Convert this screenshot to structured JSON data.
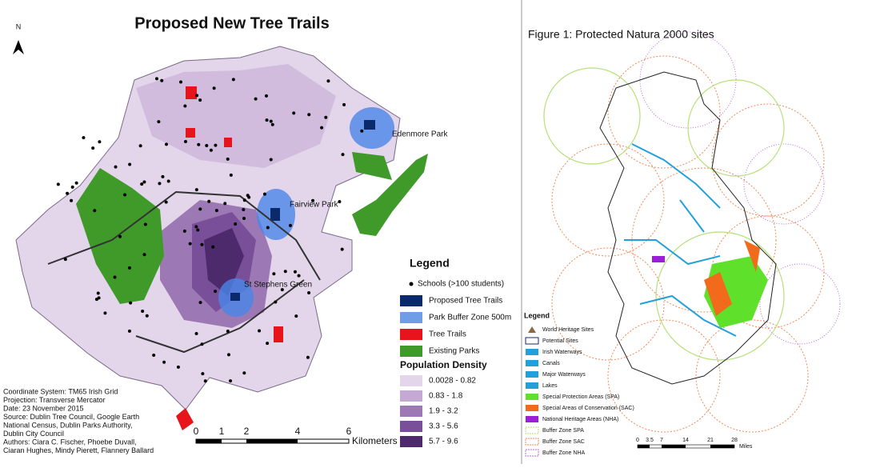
{
  "left_map": {
    "north": "N",
    "title": "Proposed New Tree Trails",
    "places": [
      "Edenmore Park",
      "Fairview Park",
      "St Stephens Green"
    ],
    "legend_title": "Legend",
    "legend": [
      {
        "label": "Schools (>100 students)",
        "color": "#000000"
      },
      {
        "label": "Proposed Tree Trails",
        "color": "#0b2a6b"
      },
      {
        "label": "Park Buffer Zone 500m",
        "color": "#6f9ee6"
      },
      {
        "label": "Tree Trails",
        "color": "#e8141b"
      },
      {
        "label": "Existing Parks",
        "color": "#3f9a2a"
      }
    ],
    "density_title": "Population Density",
    "density": [
      {
        "label": "0.0028 - 0.82",
        "color": "#e3d5ea"
      },
      {
        "label": "0.83 - 1.8",
        "color": "#c4a9d3"
      },
      {
        "label": "1.9 - 3.2",
        "color": "#9c79b4"
      },
      {
        "label": "3.3 - 5.6",
        "color": "#7a4f99"
      },
      {
        "label": "5.7 - 9.6",
        "color": "#4d2a6b"
      }
    ],
    "credits": [
      "Coordinate System: TM65 Irish Grid",
      "Projection: Transverse Mercator",
      "Date: 23 November 2015",
      "Source: Dublin Tree Council, Google Earth",
      "National Census, Dublin Parks Authority,",
      "Dublin City Council",
      "Authors: Ciara C. Fischer, Phoebe Duvall,",
      "Ciaran Hughes, Mindy Pierett, Flannery Ballard"
    ],
    "scale": [
      "0",
      "1",
      "2",
      "4",
      "6"
    ],
    "scale_unit": "Kilometers"
  },
  "right_map": {
    "title": "Figure 1: Protected Natura 2000 sites",
    "legend_title": "Legend",
    "legend": [
      {
        "label": "World Heritage Sites",
        "color": "#8b6a4a"
      },
      {
        "label": "Potential Sites",
        "color": "#1a2a6b"
      },
      {
        "label": "Irish Waterways",
        "color": "#22a0dc"
      },
      {
        "label": "Canals",
        "color": "#22a0dc"
      },
      {
        "label": "Major Waterways",
        "color": "#22a0dc"
      },
      {
        "label": "Lakes",
        "color": "#22a0dc"
      },
      {
        "label": "Special Protection Areas (SPA)",
        "color": "#5fe02a"
      },
      {
        "label": "Special Areas of Conservation (SAC)",
        "color": "#f26a1b"
      },
      {
        "label": "National Heritage Areas (NHA)",
        "color": "#9b1fd6"
      },
      {
        "label": "Buffer Zone SPA",
        "color": "#b6e07a"
      },
      {
        "label": "Buffer Zone SAC",
        "color": "#f08a5a"
      },
      {
        "label": "Buffer Zone NHA",
        "color": "#b868d8"
      }
    ],
    "scale": [
      "0",
      "3.5",
      "7",
      "14",
      "21",
      "28"
    ],
    "scale_unit": "Miles"
  }
}
